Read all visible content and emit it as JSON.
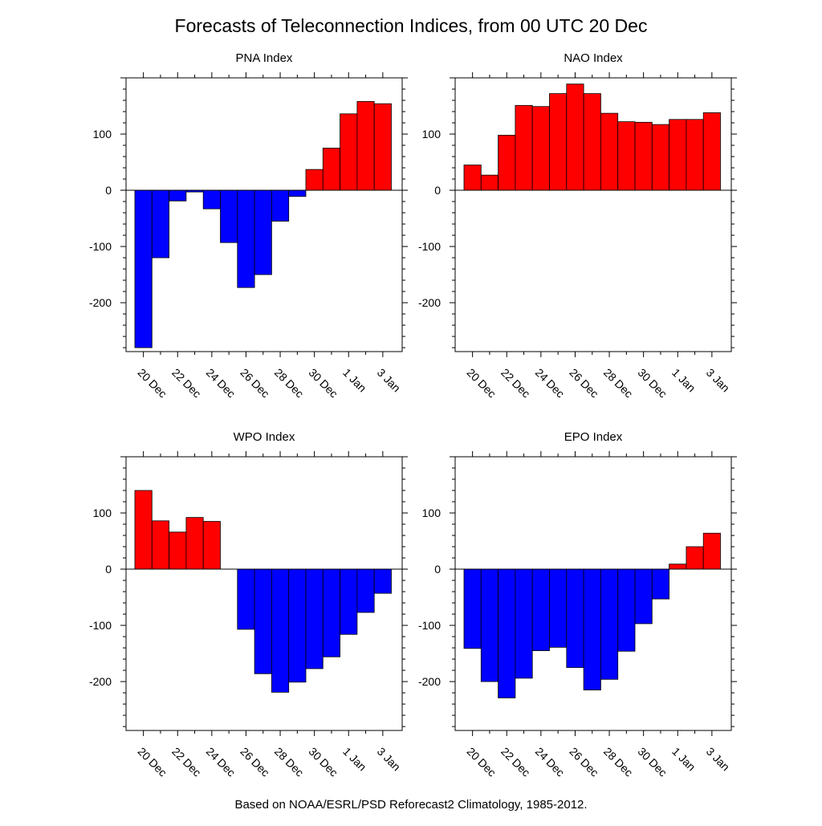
{
  "title": "Forecasts of Teleconnection Indices, from 00 UTC 20 Dec",
  "footer": "Based on NOAA/ESRL/PSD Reforecast2 Climatology, 1985-2012.",
  "colors": {
    "positive": "#ff0000",
    "negative": "#0000ff"
  },
  "chart_data": [
    {
      "type": "bar",
      "title": "PNA Index",
      "xlabel": "",
      "ylabel": "",
      "categories": [
        "20 Dec",
        "21 Dec",
        "22 Dec",
        "23 Dec",
        "24 Dec",
        "25 Dec",
        "26 Dec",
        "27 Dec",
        "28 Dec",
        "29 Dec",
        "30 Dec",
        "31 Dec",
        "1 Jan",
        "2 Jan",
        "3 Jan"
      ],
      "values": [
        -280,
        -120,
        -19,
        -3,
        -33,
        -93,
        -173,
        -150,
        -55,
        -11,
        37,
        75,
        136,
        158,
        154
      ],
      "ylim": [
        -287,
        200
      ],
      "yticks": [
        "100",
        "0",
        "-100",
        "-200"
      ],
      "xticks": [
        "20 Dec",
        "22 Dec",
        "24 Dec",
        "26 Dec",
        "28 Dec",
        "30 Dec",
        "1 Jan",
        "3 Jan"
      ]
    },
    {
      "type": "bar",
      "title": "NAO Index",
      "xlabel": "",
      "ylabel": "",
      "categories": [
        "20 Dec",
        "21 Dec",
        "22 Dec",
        "23 Dec",
        "24 Dec",
        "25 Dec",
        "26 Dec",
        "27 Dec",
        "28 Dec",
        "29 Dec",
        "30 Dec",
        "31 Dec",
        "1 Jan",
        "2 Jan",
        "3 Jan"
      ],
      "values": [
        45,
        27,
        98,
        151,
        149,
        172,
        189,
        172,
        137,
        122,
        121,
        117,
        126,
        126,
        138
      ],
      "ylim": [
        -287,
        200
      ],
      "yticks": [
        "100",
        "0",
        "-100",
        "-200"
      ],
      "xticks": [
        "20 Dec",
        "22 Dec",
        "24 Dec",
        "26 Dec",
        "28 Dec",
        "30 Dec",
        "1 Jan",
        "3 Jan"
      ]
    },
    {
      "type": "bar",
      "title": "WPO Index",
      "xlabel": "",
      "ylabel": "",
      "categories": [
        "20 Dec",
        "21 Dec",
        "22 Dec",
        "23 Dec",
        "24 Dec",
        "25 Dec",
        "26 Dec",
        "27 Dec",
        "28 Dec",
        "29 Dec",
        "30 Dec",
        "31 Dec",
        "1 Jan",
        "2 Jan",
        "3 Jan"
      ],
      "values": [
        140,
        86,
        66,
        92,
        85,
        0,
        -107,
        -186,
        -219,
        -201,
        -177,
        -156,
        -116,
        -77,
        -43
      ],
      "ylim": [
        -287,
        200
      ],
      "yticks": [
        "100",
        "0",
        "-100",
        "-200"
      ],
      "xticks": [
        "20 Dec",
        "22 Dec",
        "24 Dec",
        "26 Dec",
        "28 Dec",
        "30 Dec",
        "1 Jan",
        "3 Jan"
      ]
    },
    {
      "type": "bar",
      "title": "EPO Index",
      "xlabel": "",
      "ylabel": "",
      "categories": [
        "20 Dec",
        "21 Dec",
        "22 Dec",
        "23 Dec",
        "24 Dec",
        "25 Dec",
        "26 Dec",
        "27 Dec",
        "28 Dec",
        "29 Dec",
        "30 Dec",
        "31 Dec",
        "1 Jan",
        "2 Jan",
        "3 Jan"
      ],
      "values": [
        -141,
        -200,
        -229,
        -194,
        -145,
        -139,
        -175,
        -215,
        -196,
        -146,
        -97,
        -53,
        9,
        40,
        64
      ],
      "ylim": [
        -287,
        200
      ],
      "yticks": [
        "100",
        "0",
        "-100",
        "-200"
      ],
      "xticks": [
        "20 Dec",
        "22 Dec",
        "24 Dec",
        "26 Dec",
        "28 Dec",
        "30 Dec",
        "1 Jan",
        "3 Jan"
      ]
    }
  ]
}
